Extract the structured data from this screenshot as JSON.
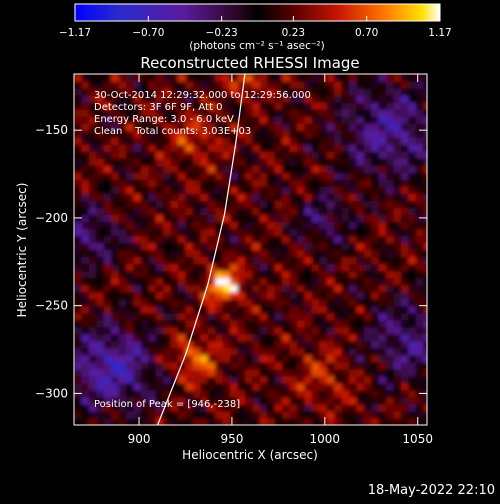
{
  "chart_data": {
    "type": "heatmap",
    "title": "Reconstructed RHESSI Image",
    "xlabel": "Heliocentric X (arcsec)",
    "ylabel": "Heliocentric Y (arcsec)",
    "xlim": [
      865,
      1055
    ],
    "ylim": [
      -318,
      -118
    ],
    "x_ticks": [
      900,
      950,
      1000,
      1050
    ],
    "y_ticks": [
      -150,
      -200,
      -250,
      -300
    ],
    "x_tick_labels": [
      "900",
      "950",
      "1000",
      "1050"
    ],
    "y_tick_labels": [
      "−150",
      "−200",
      "−250",
      "−300"
    ],
    "colorbar": {
      "min": -1.17,
      "max": 1.17,
      "ticks": [
        -1.17,
        -0.7,
        -0.23,
        0.23,
        0.7,
        1.17
      ],
      "tick_labels": [
        "−1.17",
        "−0.70",
        "−0.23",
        "0.23",
        "0.70",
        "1.17"
      ],
      "units_label": "(photons cm⁻² s⁻¹ asec⁻²)"
    },
    "annotations": [
      "30-Oct-2014 12:29:32.000 to 12:29:56.000",
      "Detectors: 3F 6F 9F, Att 0",
      "Energy Range: 3.0 - 6.0 keV",
      "Clean    Total counts: 3.03E+03"
    ],
    "peak_label": "Position of Peak = [946,-238]",
    "peak": [
      946,
      -238
    ],
    "limb_curve": [
      [
        910,
        -318
      ],
      [
        925,
        -278
      ],
      [
        937,
        -238
      ],
      [
        946,
        -198
      ],
      [
        952,
        -158
      ],
      [
        957,
        -118
      ]
    ]
  },
  "footer": {
    "timestamp": "18-May-2022 22:10"
  },
  "colors": {
    "background": "#000000",
    "text": "#ffffff",
    "limb": "#ffffff"
  }
}
